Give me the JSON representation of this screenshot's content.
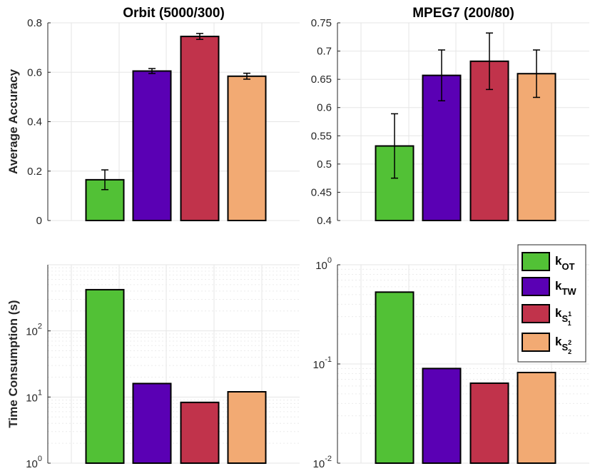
{
  "colors": {
    "k_OT": "#52c136",
    "k_TW": "#5a00b4",
    "k_S1": "#c1334b",
    "k_S2": "#f2aa73"
  },
  "legend": {
    "entries": [
      {
        "base": "k",
        "sub": "OT",
        "color": "#52c136"
      },
      {
        "base": "k",
        "sub": "TW",
        "color": "#5a00b4"
      },
      {
        "base": "k",
        "sub": "S",
        "subsub": "1",
        "sup": "1",
        "color": "#c1334b"
      },
      {
        "base": "k",
        "sub": "S",
        "subsub": "2",
        "sup": "2",
        "color": "#f2aa73"
      }
    ]
  },
  "chart_data": [
    {
      "type": "bar",
      "title": "Orbit (5000/300)",
      "ylabel": "Average Accuracy",
      "scale": "linear",
      "ylim": [
        0,
        0.8
      ],
      "yticks": [
        "0",
        "0.2",
        "0.4",
        "0.6",
        "0.8"
      ],
      "values": [
        0.165,
        0.605,
        0.745,
        0.584
      ],
      "errors": [
        0.04,
        0.01,
        0.012,
        0.012
      ],
      "grid": true
    },
    {
      "type": "bar",
      "title": "MPEG7 (200/80)",
      "ylabel": "",
      "scale": "linear",
      "ylim": [
        0.4,
        0.75
      ],
      "yticks": [
        "0.4",
        "0.45",
        "0.5",
        "0.55",
        "0.6",
        "0.65",
        "0.7",
        "0.75"
      ],
      "values": [
        0.532,
        0.657,
        0.682,
        0.66
      ],
      "errors": [
        0.057,
        0.045,
        0.05,
        0.042
      ],
      "grid": true
    },
    {
      "type": "bar",
      "title": "",
      "ylabel": "Time Consumption (s)",
      "scale": "log",
      "ylim": [
        1,
        1000
      ],
      "ytick_exponents": [
        "0",
        "1",
        "2"
      ],
      "tick_base": "10",
      "values": [
        420,
        16,
        8.3,
        12
      ],
      "grid": true
    },
    {
      "type": "bar",
      "title": "",
      "ylabel": "",
      "scale": "log",
      "ylim": [
        0.01,
        1
      ],
      "ytick_exponents": [
        "-2",
        "-1",
        "0"
      ],
      "tick_base": "10",
      "values": [
        0.53,
        0.09,
        0.064,
        0.082
      ],
      "grid": true,
      "legend": "top-right"
    }
  ]
}
